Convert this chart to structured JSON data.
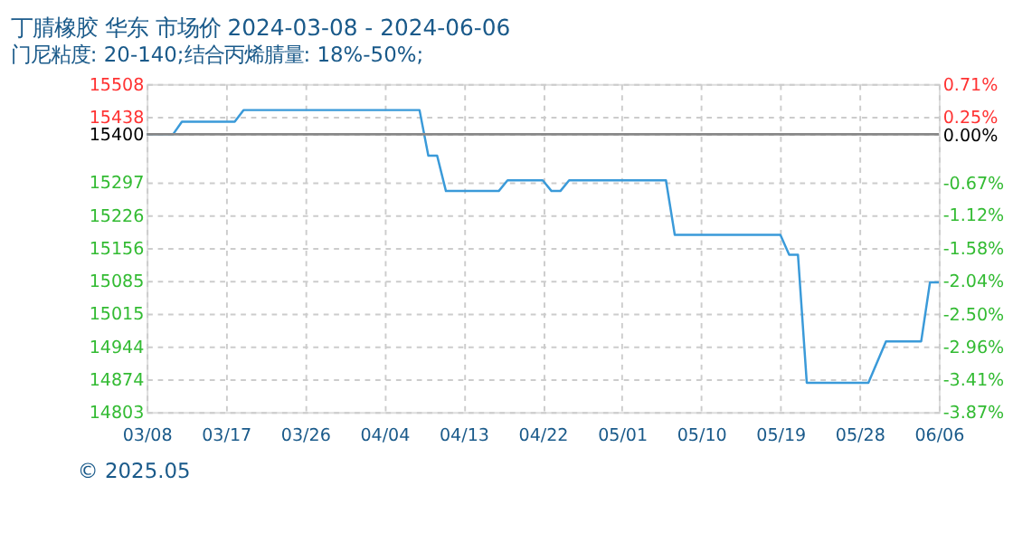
{
  "chart_data": {
    "type": "line",
    "title": "丁腈橡胶 华东 市场价 2024-03-08 - 2024-06-06",
    "subtitle": "门尼粘度: 20-140;结合丙烯腈量: 18%-50%;",
    "x": [
      "2024-03-08",
      "2024-03-11",
      "2024-03-12",
      "2024-03-18",
      "2024-03-19",
      "2024-04-08",
      "2024-04-09",
      "2024-04-10",
      "2024-04-11",
      "2024-04-17",
      "2024-04-18",
      "2024-04-22",
      "2024-04-23",
      "2024-04-24",
      "2024-04-25",
      "2024-05-06",
      "2024-05-07",
      "2024-05-19",
      "2024-05-20",
      "2024-05-21",
      "2024-05-22",
      "2024-05-29",
      "2024-05-31",
      "2024-06-04",
      "2024-06-05",
      "2024-06-06"
    ],
    "series": [
      {
        "color": "#3a9ad9",
        "values": [
          15400,
          15400,
          15427,
          15427,
          15452,
          15452,
          15354,
          15354,
          15278,
          15278,
          15301,
          15301,
          15278,
          15278,
          15301,
          15301,
          15184,
          15184,
          15141,
          15141,
          14866,
          14866,
          14955,
          14955,
          15082,
          15082
        ]
      }
    ],
    "xlim": [
      "2024-03-08",
      "2024-06-06"
    ],
    "xticks": [
      {
        "value": "2024-03-08",
        "label": "03/08"
      },
      {
        "value": "2024-03-17",
        "label": "03/17"
      },
      {
        "value": "2024-03-26",
        "label": "03/26"
      },
      {
        "value": "2024-04-04",
        "label": "04/04"
      },
      {
        "value": "2024-04-13",
        "label": "04/13"
      },
      {
        "value": "2024-04-22",
        "label": "04/22"
      },
      {
        "value": "2024-05-01",
        "label": "05/01"
      },
      {
        "value": "2024-05-10",
        "label": "05/10"
      },
      {
        "value": "2024-05-19",
        "label": "05/19"
      },
      {
        "value": "2024-05-28",
        "label": "05/28"
      },
      {
        "value": "2024-06-06",
        "label": "06/06"
      }
    ],
    "ylim": [
      14803,
      15508
    ],
    "yticks": [
      15508,
      15438,
      15400,
      15297,
      15226,
      15156,
      15085,
      15015,
      14944,
      14874,
      14803
    ],
    "y2lim": [
      -3.87,
      0.71
    ],
    "y2ticks": [
      {
        "value": 0.71,
        "label": "0.71%"
      },
      {
        "value": 0.25,
        "label": "0.25%"
      },
      {
        "value": 0,
        "label": "0.00%"
      },
      {
        "value": -0.67,
        "label": "-0.67%"
      },
      {
        "value": -1.12,
        "label": "-1.12%"
      },
      {
        "value": -1.58,
        "label": "-1.58%"
      },
      {
        "value": -2.04,
        "label": "-2.04%"
      },
      {
        "value": -2.5,
        "label": "-2.50%"
      },
      {
        "value": -2.96,
        "label": "-2.96%"
      },
      {
        "value": -3.41,
        "label": "-3.41%"
      },
      {
        "value": -3.87,
        "label": "-3.87%"
      }
    ],
    "ref_lines": [
      {
        "axis": "y",
        "value": 15400,
        "color": "#888888"
      }
    ],
    "grid": true,
    "marker": "none",
    "line_style": "solid",
    "annotations": [
      "© 2025.05"
    ]
  }
}
